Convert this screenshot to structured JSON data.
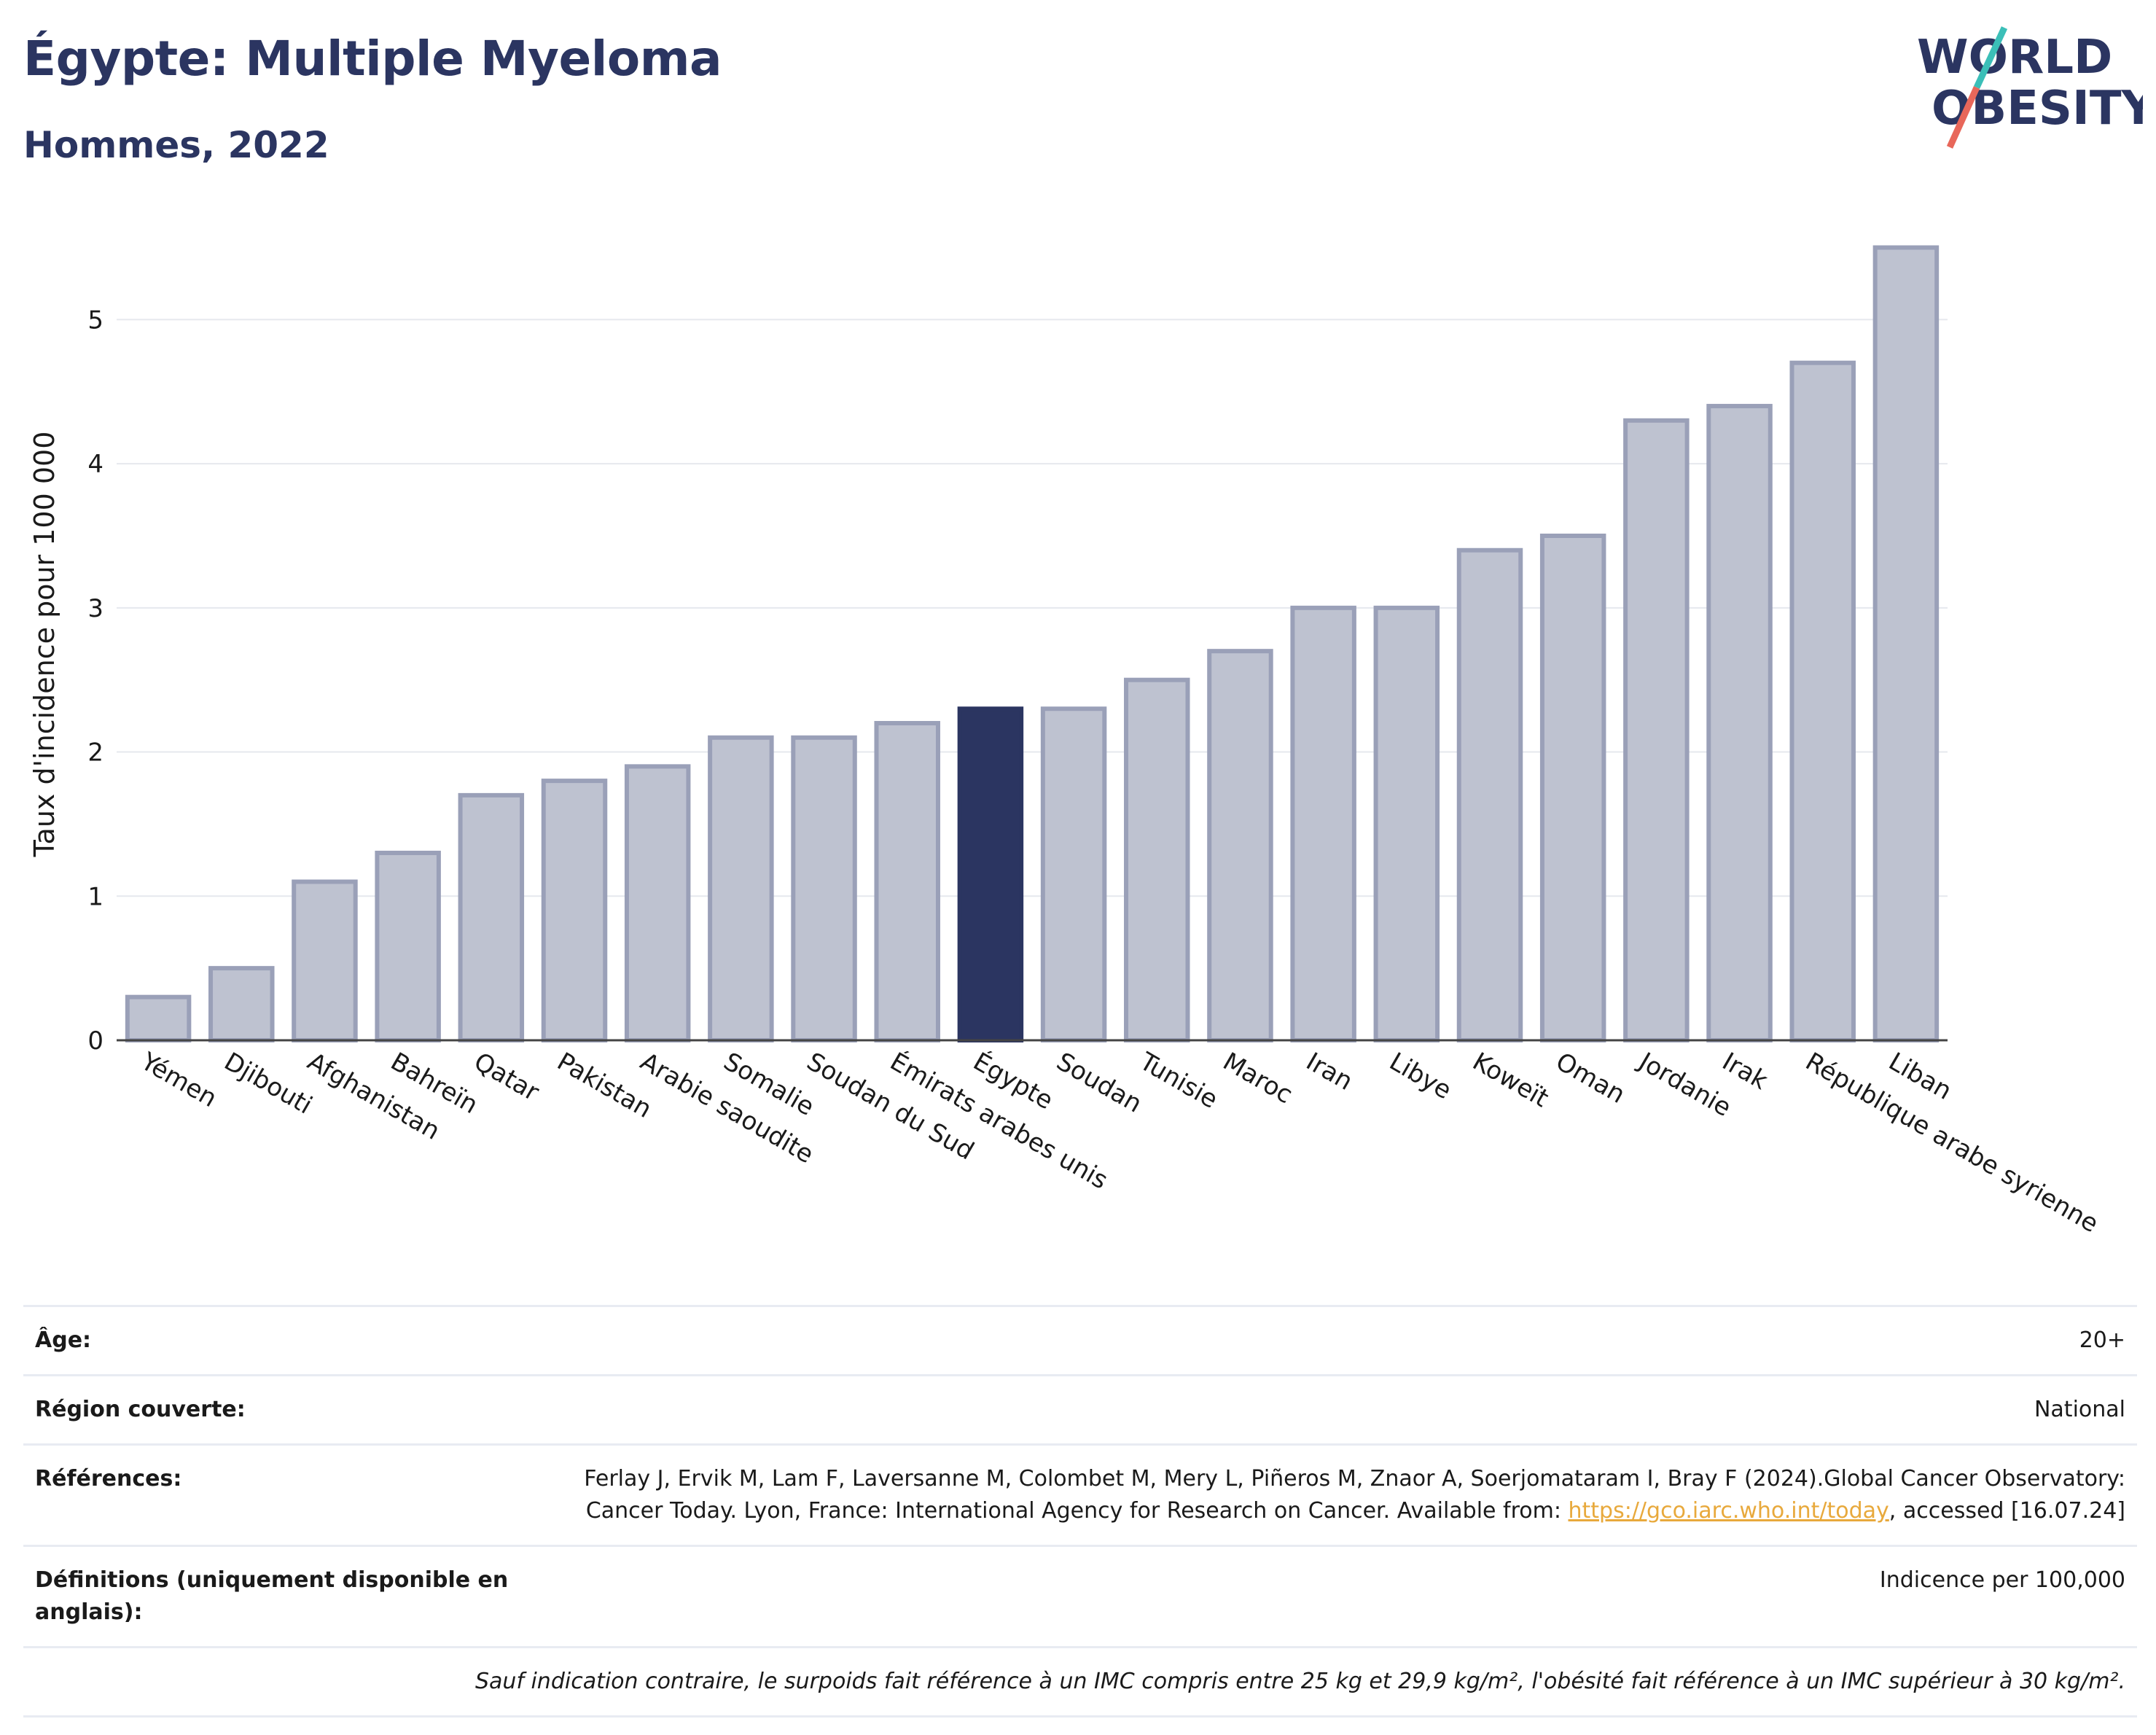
{
  "header": {
    "title": "Égypte: Multiple Myeloma",
    "subtitle": "Hommes, 2022",
    "logo_line1": "WORLD",
    "logo_line2": "OBESITY"
  },
  "colors": {
    "bar": "#bec2d0",
    "bar_border": "#9aa0b8",
    "highlight": "#2b3561",
    "grid": "#e6e8ee",
    "title": "#2b3561",
    "logo_slash_teal": "#3bbfb8",
    "logo_slash_coral": "#e8675a",
    "link": "#e8a93c"
  },
  "chart_data": {
    "type": "bar",
    "title": "Égypte: Multiple Myeloma",
    "subtitle": "Hommes, 2022",
    "ylabel": "Taux d'incidence pour 100 000",
    "xlabel": "",
    "ylim": [
      0,
      5.7
    ],
    "yticks": [
      0,
      1,
      2,
      3,
      4,
      5
    ],
    "grid": true,
    "highlight_category": "Égypte",
    "categories": [
      "Yémen",
      "Djibouti",
      "Afghanistan",
      "Bahreïn",
      "Qatar",
      "Pakistan",
      "Arabie saoudite",
      "Somalie",
      "Soudan du Sud",
      "Émirats arabes unis",
      "Égypte",
      "Soudan",
      "Tunisie",
      "Maroc",
      "Iran",
      "Libye",
      "Koweït",
      "Oman",
      "Jordanie",
      "Irak",
      "République arabe syrienne",
      "Liban"
    ],
    "values": [
      0.3,
      0.5,
      1.1,
      1.3,
      1.7,
      1.8,
      1.9,
      2.1,
      2.1,
      2.2,
      2.3,
      2.3,
      2.5,
      2.7,
      3.0,
      3.0,
      3.4,
      3.5,
      4.3,
      4.4,
      4.7,
      5.5
    ]
  },
  "meta": {
    "age_label": "Âge:",
    "age_value": "20+",
    "region_label": "Région couverte:",
    "region_value": "National",
    "refs_label": "Références:",
    "refs_text1": "Ferlay J, Ervik M, Lam F, Laversanne M, Colombet M, Mery L, Piñeros M, Znaor A, Soerjomataram I, Bray F (2024).Global Cancer Observatory: Cancer Today. Lyon, France: International Agency for Research on Cancer. Available from: ",
    "refs_link": "https://gco.iarc.who.int/today",
    "refs_text2": ", accessed [16.07.24]",
    "defs_label": "Définitions (uniquement disponible en anglais):",
    "defs_value": "Indicence per 100,000",
    "note": "Sauf indication contraire, le surpoids fait référence à un IMC compris entre 25 kg et 29,9 kg/m², l'obésité fait référence à un IMC supérieur à 30 kg/m²."
  }
}
